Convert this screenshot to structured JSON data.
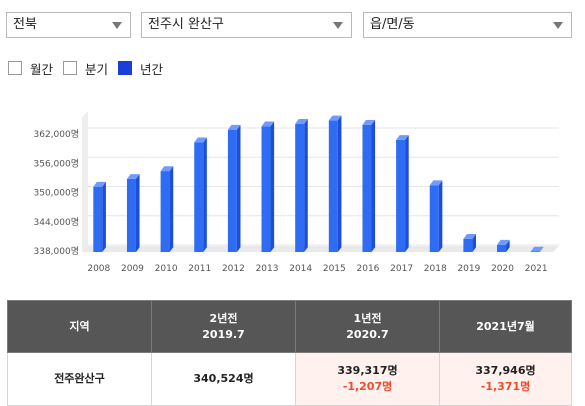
{
  "filters": {
    "province": "전북",
    "city": "전주시 완산구",
    "dong": "읍/면/동"
  },
  "period_options": [
    {
      "label": "월간",
      "checked": false
    },
    {
      "label": "분기",
      "checked": false
    },
    {
      "label": "년간",
      "checked": true
    }
  ],
  "colors": {
    "bar": "#2f6cf4",
    "selected": "#1a3fd8",
    "header": "#565656",
    "negative": "#ef4b2f",
    "highlight_bg": "#fff1ee"
  },
  "chart_data": {
    "type": "bar",
    "title": "",
    "xlabel": "",
    "ylabel": "",
    "categories": [
      "2008",
      "2009",
      "2010",
      "2011",
      "2012",
      "2013",
      "2014",
      "2015",
      "2016",
      "2017",
      "2018",
      "2019",
      "2020",
      "2021"
    ],
    "values": [
      351200,
      352800,
      354400,
      360300,
      362900,
      363600,
      364100,
      364800,
      363900,
      360800,
      351500,
      340500,
      339300,
      337900
    ],
    "ylim": [
      337800,
      365500
    ],
    "yticks": [
      338000,
      344000,
      350000,
      356000,
      362000
    ],
    "ytick_labels": [
      "338,000명",
      "344,000명",
      "350,000명",
      "356,000명",
      "362,000명"
    ],
    "grid": true
  },
  "table": {
    "headers": [
      {
        "line1": "지역",
        "line2": ""
      },
      {
        "line1": "2년전",
        "line2": "2019.7"
      },
      {
        "line1": "1년전",
        "line2": "2020.7"
      },
      {
        "line1": "2021년7월",
        "line2": ""
      }
    ],
    "row": {
      "region": "전주완산구",
      "two_years": "340,524명",
      "one_year": "339,317명",
      "one_year_change": "-1,207명",
      "current": "337,946명",
      "current_change": "-1,371명"
    }
  }
}
